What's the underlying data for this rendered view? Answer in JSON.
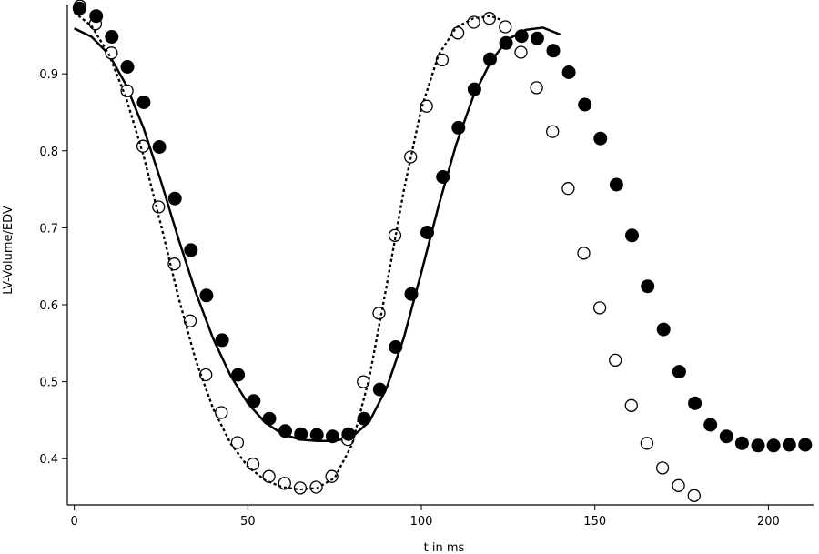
{
  "chart_data": {
    "type": "scatter",
    "title": "",
    "xlabel": "t in ms",
    "ylabel": "LV-Volume/EDV",
    "xlim": [
      -2,
      213
    ],
    "ylim": [
      0.34,
      0.99
    ],
    "xticks": [
      0,
      50,
      100,
      150,
      200
    ],
    "yticks": [
      0.4,
      0.5,
      0.6,
      0.7,
      0.8,
      0.9
    ],
    "xtick_labels": [
      "0",
      "50",
      "100",
      "150",
      "200"
    ],
    "ytick_labels": [
      "0.4",
      "0.5",
      "0.6",
      "0.7",
      "0.8",
      "0.9"
    ],
    "grid": false,
    "legend": "none",
    "series": [
      {
        "style": "filled-circle-markers",
        "color": "#000000",
        "x": [
          1.5,
          6.3,
          10.8,
          15.3,
          20.0,
          24.5,
          29.0,
          33.6,
          38.1,
          42.6,
          47.2,
          51.7,
          56.2,
          60.8,
          65.3,
          69.9,
          74.4,
          79.0,
          83.5,
          88.0,
          92.6,
          97.1,
          101.7,
          106.2,
          110.7,
          115.3,
          119.8,
          124.4,
          128.9,
          133.4,
          138.0,
          142.5,
          147.1,
          151.6,
          156.2,
          160.7,
          165.2,
          169.8,
          174.3,
          178.8,
          183.3,
          187.9,
          192.4,
          197.0,
          201.5,
          206.0,
          210.6
        ],
        "y": [
          0.985,
          0.975,
          0.948,
          0.909,
          0.863,
          0.805,
          0.738,
          0.671,
          0.612,
          0.554,
          0.509,
          0.475,
          0.452,
          0.436,
          0.432,
          0.431,
          0.429,
          0.432,
          0.452,
          0.49,
          0.545,
          0.614,
          0.694,
          0.766,
          0.83,
          0.88,
          0.919,
          0.94,
          0.949,
          0.946,
          0.93,
          0.902,
          0.86,
          0.816,
          0.756,
          0.69,
          0.624,
          0.568,
          0.513,
          0.472,
          0.444,
          0.429,
          0.42,
          0.417,
          0.417,
          0.418,
          0.418
        ]
      },
      {
        "style": "open-circle-markers",
        "color": "#000000",
        "x": [
          1.6,
          6.1,
          10.7,
          15.2,
          19.8,
          24.3,
          28.8,
          33.4,
          37.9,
          42.4,
          47.0,
          51.5,
          56.1,
          60.6,
          65.1,
          69.7,
          74.2,
          78.8,
          83.3,
          87.8,
          92.4,
          96.9,
          101.5,
          106.0,
          110.5,
          115.1,
          119.6,
          124.2,
          128.7,
          133.2,
          137.8,
          142.3,
          146.8,
          151.4,
          155.9,
          160.5,
          165.0,
          169.5,
          174.1,
          178.6
        ],
        "y": [
          0.988,
          0.965,
          0.927,
          0.878,
          0.806,
          0.727,
          0.653,
          0.579,
          0.509,
          0.46,
          0.421,
          0.393,
          0.377,
          0.368,
          0.362,
          0.363,
          0.377,
          0.425,
          0.5,
          0.589,
          0.69,
          0.792,
          0.858,
          0.918,
          0.953,
          0.967,
          0.972,
          0.961,
          0.928,
          0.882,
          0.825,
          0.751,
          0.667,
          0.596,
          0.528,
          0.469,
          0.42,
          0.388,
          0.365,
          0.352
        ]
      },
      {
        "style": "solid-line",
        "color": "#000000",
        "x": [
          0,
          5,
          10,
          15,
          20,
          25,
          30,
          35,
          40,
          45,
          50,
          55,
          60,
          65,
          70,
          75,
          80,
          85,
          90,
          95,
          100,
          105,
          110,
          115,
          120,
          125,
          130,
          135,
          140
        ],
        "y": [
          0.959,
          0.948,
          0.925,
          0.885,
          0.829,
          0.76,
          0.686,
          0.616,
          0.556,
          0.508,
          0.472,
          0.447,
          0.432,
          0.425,
          0.423,
          0.423,
          0.428,
          0.448,
          0.492,
          0.558,
          0.642,
          0.729,
          0.808,
          0.871,
          0.916,
          0.945,
          0.957,
          0.96,
          0.951
        ]
      },
      {
        "style": "dotted-line",
        "color": "#000000",
        "x": [
          0,
          5,
          10,
          15,
          20,
          25,
          30,
          35,
          40,
          45,
          50,
          55,
          60,
          65,
          70,
          75,
          80,
          85,
          90,
          95,
          100,
          105,
          110,
          115,
          120,
          123
        ],
        "y": [
          0.98,
          0.962,
          0.925,
          0.868,
          0.793,
          0.703,
          0.61,
          0.528,
          0.465,
          0.42,
          0.39,
          0.372,
          0.363,
          0.36,
          0.362,
          0.375,
          0.418,
          0.505,
          0.625,
          0.75,
          0.855,
          0.925,
          0.96,
          0.972,
          0.975,
          0.97
        ]
      }
    ]
  }
}
